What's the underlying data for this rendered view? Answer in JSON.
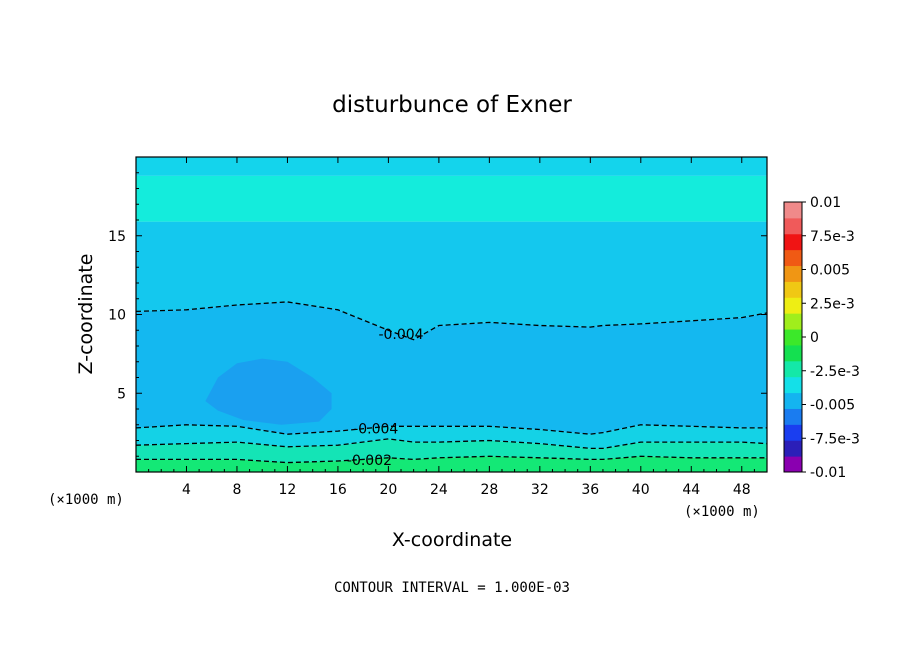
{
  "chart_data": {
    "type": "heatmap",
    "title": "disturbunce of Exner",
    "xlabel": "X-coordinate",
    "ylabel": "Z-coordinate",
    "x_unit_label": "(×1000 m)",
    "y_unit_label": "(×1000 m)",
    "xlim": [
      0,
      50
    ],
    "ylim": [
      0,
      20
    ],
    "x_ticks": [
      4,
      8,
      12,
      16,
      20,
      24,
      28,
      32,
      36,
      40,
      44,
      48
    ],
    "y_ticks": [
      5,
      10,
      15
    ],
    "footer": "CONTOUR INTERVAL = 1.000E-03",
    "colorbar": {
      "labels": [
        "0.01",
        "7.5e-3",
        "0.005",
        "2.5e-3",
        "0",
        "-2.5e-3",
        "-0.005",
        "-7.5e-3",
        "-0.01"
      ],
      "range": [
        -0.01,
        0.01
      ],
      "colors": [
        "#8a00b0",
        "#2b1fb8",
        "#1a3ef0",
        "#1a7cf0",
        "#14b4f0",
        "#14e0e8",
        "#14e8a8",
        "#14e050",
        "#3ce82a",
        "#a0ee1c",
        "#eeee14",
        "#f0c814",
        "#f09614",
        "#f05a14",
        "#f01414",
        "#f05a5a",
        "#f08a8a"
      ]
    },
    "contour_labels": [
      {
        "text": "-0.004",
        "x": 21,
        "z": 8.7
      },
      {
        "text": "-0.004",
        "x": 19,
        "z": 2.7
      },
      {
        "text": "-0.002",
        "x": 18.5,
        "z": 0.7
      }
    ],
    "bands": {
      "x": [
        0,
        4,
        8,
        12,
        16,
        20,
        22,
        24,
        28,
        32,
        36,
        37,
        40,
        44,
        48,
        50
      ],
      "boundaries": [
        {
          "name": "-0.002",
          "z": [
            0.8,
            0.8,
            0.8,
            0.6,
            0.7,
            0.9,
            0.8,
            0.9,
            1.0,
            0.9,
            0.8,
            0.8,
            1.0,
            0.9,
            0.9,
            0.9
          ],
          "color": "#14e08c",
          "dashed": true,
          "label": "-0.002"
        },
        {
          "name": "-0.003",
          "z": [
            1.7,
            1.8,
            1.9,
            1.6,
            1.7,
            2.1,
            1.9,
            1.9,
            2.0,
            1.8,
            1.5,
            1.5,
            1.9,
            1.9,
            1.9,
            1.8
          ],
          "color": "#14e4c4",
          "dashed": true,
          "label": ""
        },
        {
          "name": "-0.004",
          "z": [
            2.8,
            3.0,
            2.9,
            2.4,
            2.6,
            2.9,
            2.9,
            2.9,
            2.9,
            2.7,
            2.4,
            2.5,
            3.0,
            2.9,
            2.8,
            2.8
          ],
          "color": "#14c8ec",
          "dashed": true,
          "label": "-0.004"
        },
        {
          "name": "-0.004b",
          "z": [
            10.2,
            10.3,
            10.6,
            10.8,
            10.3,
            9.0,
            8.4,
            9.3,
            9.5,
            9.3,
            9.2,
            9.3,
            9.4,
            9.6,
            9.8,
            10.1
          ],
          "color": "#14bcf0",
          "dashed": true,
          "label": "-0.004"
        },
        {
          "name": "-0.003b",
          "z": [
            15.9,
            15.9,
            15.9,
            15.9,
            15.9,
            15.9,
            15.9,
            15.9,
            15.9,
            15.9,
            15.9,
            15.9,
            15.9,
            15.9,
            15.9,
            15.9
          ],
          "color": "#14ecd8",
          "dashed": false,
          "label": ""
        },
        {
          "name": "-0.004c",
          "z": [
            18.8,
            18.8,
            18.8,
            18.8,
            18.8,
            18.8,
            18.8,
            18.8,
            18.8,
            18.8,
            18.8,
            18.8,
            18.8,
            18.8,
            18.8,
            18.8
          ],
          "color": "#14d8ea",
          "dashed": false,
          "label": ""
        }
      ],
      "fills": [
        "#14e876",
        "#14e4b6",
        "#14d2e6",
        "#14b8f0",
        "#14c8ee",
        "#14ecdc",
        "#14d4ec"
      ],
      "blob": {
        "color": "#1aa0f0",
        "points": [
          [
            5.5,
            4.5
          ],
          [
            6.5,
            6.0
          ],
          [
            8.0,
            6.9
          ],
          [
            10.0,
            7.2
          ],
          [
            12.0,
            7.0
          ],
          [
            14.0,
            6.0
          ],
          [
            15.5,
            5.0
          ],
          [
            15.5,
            4.0
          ],
          [
            14.5,
            3.2
          ],
          [
            11.5,
            3.0
          ],
          [
            8.5,
            3.3
          ],
          [
            6.5,
            3.9
          ]
        ]
      }
    }
  }
}
